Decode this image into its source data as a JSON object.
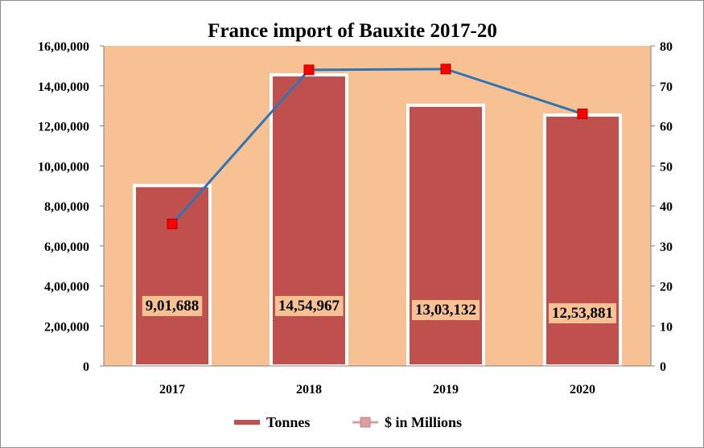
{
  "chart_data": {
    "type": "bar",
    "title": "France import of Bauxite 2017-20",
    "categories": [
      "2017",
      "2018",
      "2019",
      "2020"
    ],
    "series": [
      {
        "name": "Tonnes",
        "kind": "bar",
        "axis": "left",
        "values": [
          901688,
          1454967,
          1303132,
          1253881
        ],
        "value_labels": [
          "9,01,688",
          "14,54,967",
          "13,03,132",
          "12,53,881"
        ],
        "color": "#c0504d"
      },
      {
        "name": "$ in Millions",
        "kind": "line",
        "axis": "right",
        "values": [
          35.5,
          74,
          74.2,
          63
        ],
        "color": "#2e75b6",
        "marker_color": "#ff0000"
      }
    ],
    "y_left": {
      "lim": [
        0,
        1600000
      ],
      "ticks": [
        "0",
        "2,00,000",
        "4,00,000",
        "6,00,000",
        "8,00,000",
        "10,00,000",
        "12,00,000",
        "14,00,000",
        "16,00,000"
      ]
    },
    "y_right": {
      "lim": [
        0,
        80
      ],
      "ticks": [
        "0",
        "10",
        "20",
        "30",
        "40",
        "50",
        "60",
        "70",
        "80"
      ]
    },
    "plot_background": "#f8c193",
    "grid": false,
    "legend_position": "bottom"
  }
}
